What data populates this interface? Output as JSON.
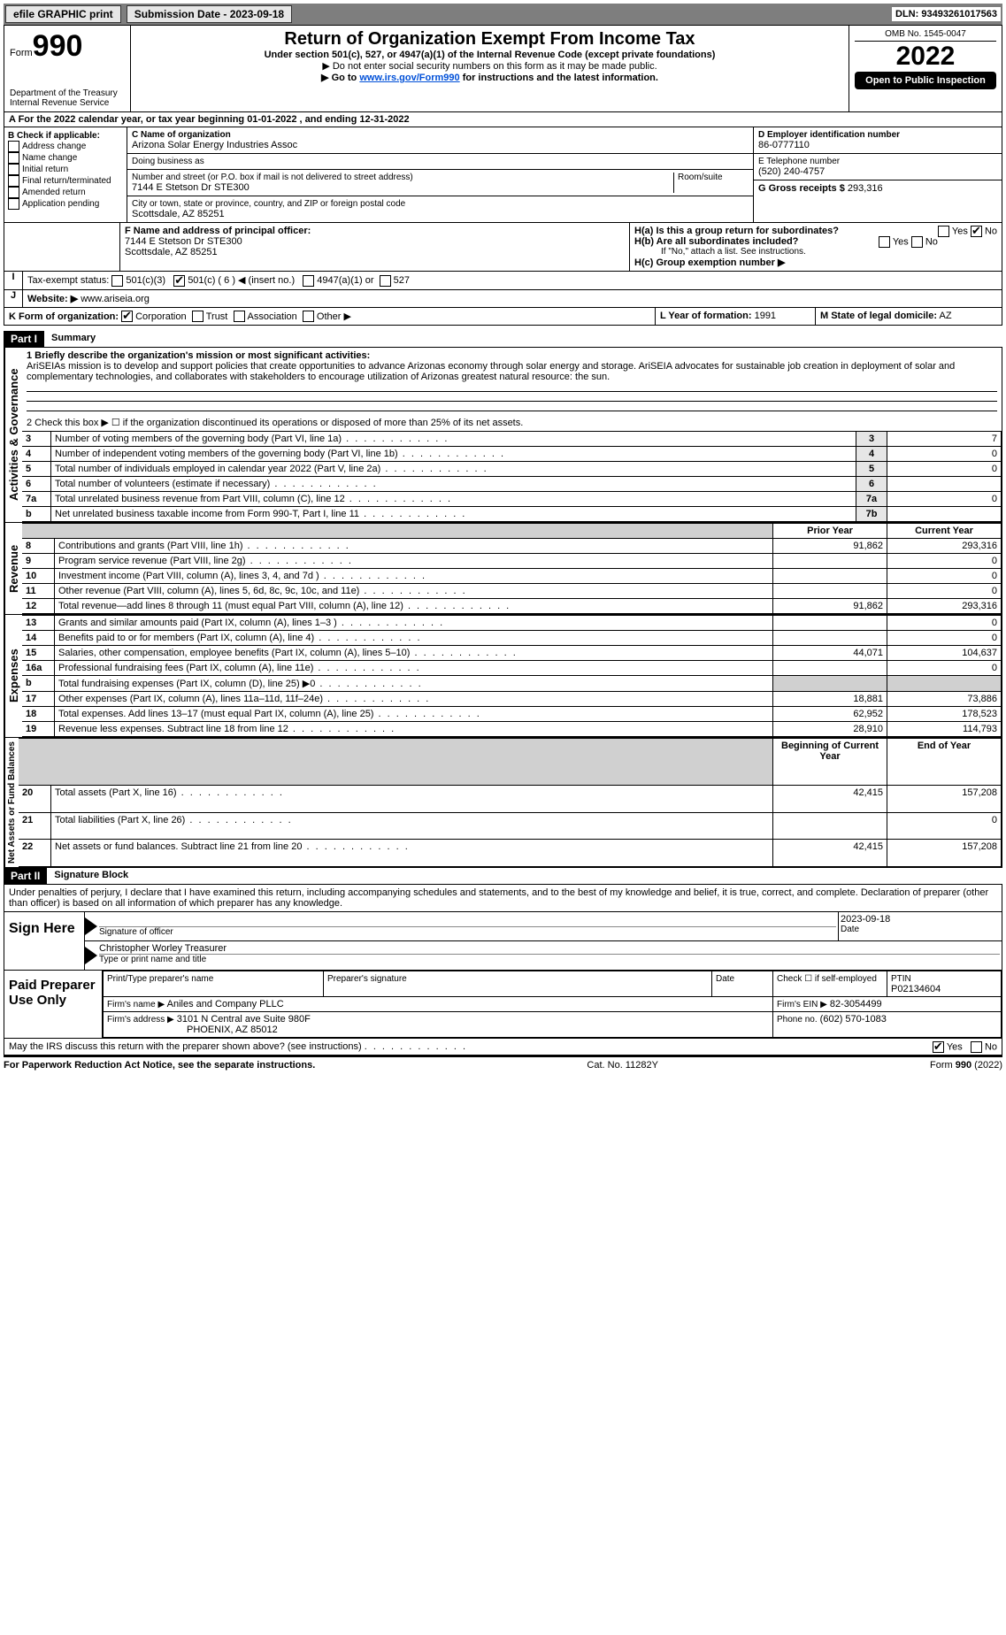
{
  "topbar": {
    "efile": "efile GRAPHIC print",
    "subdate_label": "Submission Date - 2023-09-18",
    "dln": "DLN: 93493261017563"
  },
  "head": {
    "form_word": "Form",
    "form_num": "990",
    "title": "Return of Organization Exempt From Income Tax",
    "subtitle": "Under section 501(c), 527, or 4947(a)(1) of the Internal Revenue Code (except private foundations)",
    "warn": "▶ Do not enter social security numbers on this form as it may be made public.",
    "goto_pre": "▶ Go to ",
    "goto_link": "www.irs.gov/Form990",
    "goto_post": " for instructions and the latest information.",
    "dept": "Department of the Treasury",
    "irs": "Internal Revenue Service",
    "omb": "OMB No. 1545-0047",
    "year": "2022",
    "inspect": "Open to Public Inspection"
  },
  "A": {
    "line": "A For the 2022 calendar year, or tax year beginning 01-01-2022    , and ending 12-31-2022"
  },
  "B": {
    "hdr": "B Check if applicable:",
    "items": [
      "Address change",
      "Name change",
      "Initial return",
      "Final return/terminated",
      "Amended return",
      "Application pending"
    ]
  },
  "C": {
    "name_lbl": "C Name of organization",
    "name": "Arizona Solar Energy Industries Assoc",
    "dba_lbl": "Doing business as",
    "street_lbl": "Number and street (or P.O. box if mail is not delivered to street address)",
    "room_lbl": "Room/suite",
    "street": "7144 E Stetson Dr STE300",
    "city_lbl": "City or town, state or province, country, and ZIP or foreign postal code",
    "city": "Scottsdale, AZ  85251"
  },
  "D": {
    "lbl": "D Employer identification number",
    "val": "86-0777110"
  },
  "E": {
    "lbl": "E Telephone number",
    "val": "(520) 240-4757"
  },
  "G": {
    "lbl": "G Gross receipts $",
    "val": "293,316"
  },
  "F": {
    "lbl": "F  Name and address of principal officer:",
    "addr1": "7144 E Stetson Dr STE300",
    "addr2": "Scottsdale, AZ  85251"
  },
  "H": {
    "a": "H(a)  Is this a group return for subordinates?",
    "b": "H(b)  Are all subordinates included?",
    "b2": "If \"No,\" attach a list. See instructions.",
    "c": "H(c)  Group exemption number ▶",
    "yes": "Yes",
    "no": "No"
  },
  "I": {
    "lbl": "Tax-exempt status:",
    "opts": [
      "501(c)(3)",
      "501(c) ( 6 ) ◀ (insert no.)",
      "4947(a)(1) or",
      "527"
    ]
  },
  "J": {
    "lbl": "Website: ▶",
    "val": "www.ariseia.org"
  },
  "K": {
    "lbl": "K Form of organization:",
    "opts": [
      "Corporation",
      "Trust",
      "Association",
      "Other ▶"
    ]
  },
  "L": {
    "lbl": "L Year of formation:",
    "val": "1991"
  },
  "M": {
    "lbl": "M State of legal domicile:",
    "val": "AZ"
  },
  "partI": {
    "band": "Part I",
    "title": "Summary",
    "q1": "1  Briefly describe the organization's mission or most significant activities:",
    "mission": "AriSEIAs mission is to develop and support policies that create opportunities to advance Arizonas economy through solar energy and storage. AriSEIA advocates for sustainable job creation in deployment of solar and complementary technologies, and collaborates with stakeholders to encourage utilization of Arizonas greatest natural resource: the sun.",
    "q2": "2  Check this box ▶ ☐  if the organization discontinued its operations or disposed of more than 25% of its net assets.",
    "rows_gov": [
      {
        "n": "3",
        "t": "Number of voting members of the governing body (Part VI, line 1a)",
        "k": "3",
        "v": "7"
      },
      {
        "n": "4",
        "t": "Number of independent voting members of the governing body (Part VI, line 1b)",
        "k": "4",
        "v": "0"
      },
      {
        "n": "5",
        "t": "Total number of individuals employed in calendar year 2022 (Part V, line 2a)",
        "k": "5",
        "v": "0"
      },
      {
        "n": "6",
        "t": "Total number of volunteers (estimate if necessary)",
        "k": "6",
        "v": ""
      },
      {
        "n": "7a",
        "t": "Total unrelated business revenue from Part VIII, column (C), line 12",
        "k": "7a",
        "v": "0"
      },
      {
        "n": "b",
        "t": "Net unrelated business taxable income from Form 990-T, Part I, line 11",
        "k": "7b",
        "v": ""
      }
    ],
    "hdr_prior": "Prior Year",
    "hdr_curr": "Current Year",
    "rows_rev": [
      {
        "n": "8",
        "t": "Contributions and grants (Part VIII, line 1h)",
        "p": "91,862",
        "c": "293,316"
      },
      {
        "n": "9",
        "t": "Program service revenue (Part VIII, line 2g)",
        "p": "",
        "c": "0"
      },
      {
        "n": "10",
        "t": "Investment income (Part VIII, column (A), lines 3, 4, and 7d )",
        "p": "",
        "c": "0"
      },
      {
        "n": "11",
        "t": "Other revenue (Part VIII, column (A), lines 5, 6d, 8c, 9c, 10c, and 11e)",
        "p": "",
        "c": "0"
      },
      {
        "n": "12",
        "t": "Total revenue—add lines 8 through 11 (must equal Part VIII, column (A), line 12)",
        "p": "91,862",
        "c": "293,316"
      }
    ],
    "rows_exp": [
      {
        "n": "13",
        "t": "Grants and similar amounts paid (Part IX, column (A), lines 1–3 )",
        "p": "",
        "c": "0"
      },
      {
        "n": "14",
        "t": "Benefits paid to or for members (Part IX, column (A), line 4)",
        "p": "",
        "c": "0"
      },
      {
        "n": "15",
        "t": "Salaries, other compensation, employee benefits (Part IX, column (A), lines 5–10)",
        "p": "44,071",
        "c": "104,637"
      },
      {
        "n": "16a",
        "t": "Professional fundraising fees (Part IX, column (A), line 11e)",
        "p": "",
        "c": "0"
      },
      {
        "n": "b",
        "t": "Total fundraising expenses (Part IX, column (D), line 25) ▶0",
        "p": "SHADE",
        "c": "SHADE"
      },
      {
        "n": "17",
        "t": "Other expenses (Part IX, column (A), lines 11a–11d, 11f–24e)",
        "p": "18,881",
        "c": "73,886"
      },
      {
        "n": "18",
        "t": "Total expenses. Add lines 13–17 (must equal Part IX, column (A), line 25)",
        "p": "62,952",
        "c": "178,523"
      },
      {
        "n": "19",
        "t": "Revenue less expenses. Subtract line 18 from line 12",
        "p": "28,910",
        "c": "114,793"
      }
    ],
    "hdr_boy": "Beginning of Current Year",
    "hdr_eoy": "End of Year",
    "rows_net": [
      {
        "n": "20",
        "t": "Total assets (Part X, line 16)",
        "p": "42,415",
        "c": "157,208"
      },
      {
        "n": "21",
        "t": "Total liabilities (Part X, line 26)",
        "p": "",
        "c": "0"
      },
      {
        "n": "22",
        "t": "Net assets or fund balances. Subtract line 21 from line 20",
        "p": "42,415",
        "c": "157,208"
      }
    ],
    "side_gov": "Activities & Governance",
    "side_rev": "Revenue",
    "side_exp": "Expenses",
    "side_net": "Net Assets or Fund Balances"
  },
  "partII": {
    "band": "Part II",
    "title": "Signature Block",
    "decl": "Under penalties of perjury, I declare that I have examined this return, including accompanying schedules and statements, and to the best of my knowledge and belief, it is true, correct, and complete. Declaration of preparer (other than officer) is based on all information of which preparer has any knowledge.",
    "sign_here": "Sign Here",
    "sig_officer": "Signature of officer",
    "date_lbl": "Date",
    "date": "2023-09-18",
    "name_title": "Christopher Worley  Treasurer",
    "type_lbl": "Type or print name and title",
    "paid": "Paid Preparer Use Only",
    "pp_name_lbl": "Print/Type preparer's name",
    "pp_sig_lbl": "Preparer's signature",
    "pp_check": "Check ☐ if self-employed",
    "ptin_lbl": "PTIN",
    "ptin": "P02134604",
    "firm_name_lbl": "Firm's name    ▶",
    "firm_name": "Aniles and Company PLLC",
    "firm_ein_lbl": "Firm's EIN ▶",
    "firm_ein": "82-3054499",
    "firm_addr_lbl": "Firm's address ▶",
    "firm_addr1": "3101 N Central ave Suite 980F",
    "firm_addr2": "PHOENIX, AZ  85012",
    "phone_lbl": "Phone no.",
    "phone": "(602) 570-1083",
    "discuss": "May the IRS discuss this return with the preparer shown above? (see instructions)",
    "yes": "Yes",
    "no": "No"
  },
  "footer": {
    "left": "For Paperwork Reduction Act Notice, see the separate instructions.",
    "mid": "Cat. No. 11282Y",
    "right": "Form 990 (2022)"
  }
}
